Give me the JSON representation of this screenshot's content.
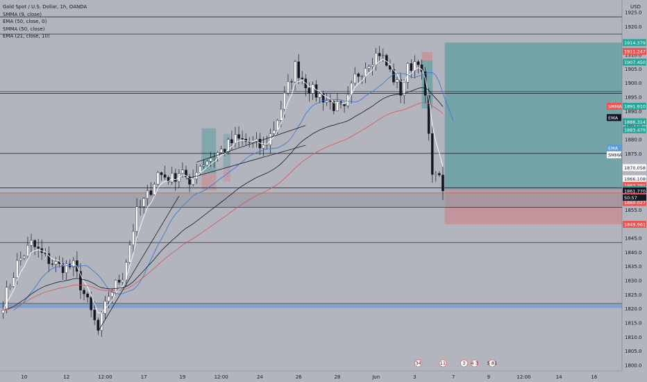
{
  "legend": {
    "title": "Gold Spot / U.S. Dollar, 1h, OANDA",
    "indicators": [
      "SMMA (9, close)",
      "EMA (50, close, 0)",
      "SMMA (50, close)",
      "EMA (21, close, 10)"
    ]
  },
  "currency": "USD",
  "colors": {
    "background": "#b2b5be",
    "up": "#ffffff",
    "down": "#131722",
    "target_zone": "#5f9ea0",
    "stop_zone": "#c98a92",
    "level_line": "#131722",
    "support_band": "#5a90d6",
    "orange_line": "#d07a28",
    "sma_white": "#ffffff",
    "ema_blue": "#3a7bd5",
    "smma_black": "#131722",
    "ema_red": "#d9534f",
    "label_teal": "#26a69a",
    "label_red": "#ef5350",
    "label_black": "#131722",
    "label_blue": "#5b9bd5",
    "label_white": "#ffffff"
  },
  "chart_data": {
    "type": "candlestick",
    "symbol": "XAUUSD",
    "timeframe": "1h",
    "y_range": [
      1798,
      1928
    ],
    "y_ticks": [
      1800,
      1805,
      1810,
      1815,
      1820,
      1825,
      1830,
      1835,
      1840,
      1845,
      1850,
      1855,
      1860,
      1865,
      1870,
      1875,
      1880,
      1885,
      1890,
      1895,
      1900,
      1905,
      1910,
      1915,
      1920,
      1925
    ],
    "x_labels": [
      {
        "text": "10",
        "i": 6
      },
      {
        "text": "12",
        "i": 18
      },
      {
        "text": "12:00",
        "i": 29
      },
      {
        "text": "17",
        "i": 40
      },
      {
        "text": "19",
        "i": 51
      },
      {
        "text": "12:00",
        "i": 62
      },
      {
        "text": "24",
        "i": 73
      },
      {
        "text": "26",
        "i": 84
      },
      {
        "text": "28",
        "i": 95
      },
      {
        "text": "Jun",
        "i": 106
      },
      {
        "text": "3",
        "i": 117
      },
      {
        "text": "7",
        "i": 128
      },
      {
        "text": "9",
        "i": 138
      },
      {
        "text": "12:00",
        "i": 148
      },
      {
        "text": "14",
        "i": 158
      },
      {
        "text": "16",
        "i": 168
      }
    ],
    "candle_count": 120,
    "total_slots": 172,
    "key_points": [
      [
        0,
        1822
      ],
      [
        4,
        1836
      ],
      [
        8,
        1843
      ],
      [
        12,
        1838
      ],
      [
        16,
        1835
      ],
      [
        20,
        1835
      ],
      [
        24,
        1822
      ],
      [
        27,
        1812
      ],
      [
        30,
        1825
      ],
      [
        34,
        1832
      ],
      [
        38,
        1854
      ],
      [
        41,
        1860
      ],
      [
        44,
        1868
      ],
      [
        48,
        1866
      ],
      [
        51,
        1870
      ],
      [
        53,
        1862
      ],
      [
        55,
        1870
      ],
      [
        58,
        1873
      ],
      [
        62,
        1876
      ],
      [
        66,
        1880
      ],
      [
        70,
        1879
      ],
      [
        74,
        1877
      ],
      [
        77,
        1884
      ],
      [
        80,
        1895
      ],
      [
        83,
        1906
      ],
      [
        86,
        1900
      ],
      [
        88,
        1897
      ],
      [
        91,
        1895
      ],
      [
        94,
        1892
      ],
      [
        97,
        1890
      ],
      [
        100,
        1902
      ],
      [
        104,
        1908
      ],
      [
        107,
        1911
      ],
      [
        110,
        1904
      ],
      [
        113,
        1897
      ],
      [
        115,
        1905
      ],
      [
        118,
        1909
      ],
      [
        120,
        1895
      ],
      [
        121,
        1880
      ],
      [
        122,
        1870
      ],
      [
        123,
        1866
      ],
      [
        124,
        1869
      ],
      [
        125,
        1861.77
      ]
    ],
    "last_price": 1861.77,
    "countdown": "50:57",
    "horizontal_levels": [
      1923.5,
      1917.4,
      1896.4,
      1875.1,
      1862.9,
      1856.0,
      1843.5,
      1821.9
    ],
    "support_band": [
      1820.3,
      1821.6
    ],
    "orange_level": 1861.1,
    "position": {
      "entry": 1862.324,
      "target": 1914.379,
      "stop": 1849.961
    },
    "price_labels": [
      {
        "value": "1914.379",
        "price": 1914.379,
        "color": "label_teal"
      },
      {
        "value": "1911.247",
        "price": 1911.247,
        "color": "label_red"
      },
      {
        "value": "1907.450",
        "price": 1907.45,
        "color": "label_teal"
      },
      {
        "value": "1891.810",
        "price": 1891.81,
        "color": "label_teal"
      },
      {
        "value": "1886.314",
        "price": 1886.314,
        "color": "label_teal"
      },
      {
        "value": "1883.479",
        "price": 1883.479,
        "color": "label_teal"
      },
      {
        "value": "1870.058",
        "price": 1870.058,
        "color": "label_white"
      },
      {
        "value": "1866.108",
        "price": 1866.108,
        "color": "label_white"
      },
      {
        "value": "1863.791",
        "price": 1863.791,
        "color": "label_red"
      },
      {
        "value": "1862.324",
        "price": 1862.324,
        "color": "label_teal"
      },
      {
        "value": "1861.770",
        "price": 1861.77,
        "color": "label_black"
      },
      {
        "value": "1861.620",
        "price": 1859.8,
        "color": "label_red"
      },
      {
        "value": "1860.027",
        "price": 1857.7,
        "color": "label_red"
      },
      {
        "value": "1849.961",
        "price": 1849.961,
        "color": "label_red"
      }
    ],
    "indicator_tags": [
      {
        "text": "SMMA",
        "price": 1891.81,
        "color": "label_red"
      },
      {
        "text": "EMA",
        "price": 1887.8,
        "color": "label_black"
      },
      {
        "text": "EMA",
        "price": 1877.0,
        "color": "label_blue"
      },
      {
        "text": "SMMA",
        "price": 1874.6,
        "color": "label_white"
      }
    ],
    "event_badges": [
      {
        "text": "34",
        "i": 118
      },
      {
        "text": "11",
        "i": 125
      },
      {
        "text": "3",
        "i": 131
      },
      {
        "text": "4 3",
        "i": 134
      },
      {
        "text": "5 81",
        "i": 139
      }
    ]
  }
}
